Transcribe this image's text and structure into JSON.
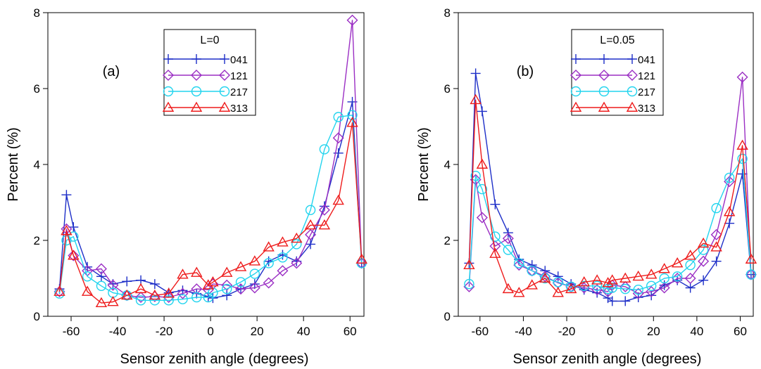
{
  "chart_data": [
    {
      "type": "line",
      "panel_label": "(a)",
      "xlabel": "Sensor zenith angle (degrees)",
      "ylabel": "Percent (%)",
      "xlim": [
        -70,
        66
      ],
      "ylim": [
        0,
        8
      ],
      "xticks": [
        -60,
        -40,
        -20,
        0,
        20,
        40,
        60
      ],
      "yticks": [
        0,
        2,
        4,
        6,
        8
      ],
      "grid": false,
      "legend": {
        "title": "L=0",
        "position": "top-center"
      },
      "series": [
        {
          "name": "041",
          "color": "#1e2fc8",
          "marker": "plus",
          "x": [
            -65,
            -62,
            -59,
            -53,
            -47,
            -42,
            -36,
            -30,
            -24,
            -18,
            -12,
            -6,
            -1,
            1,
            7,
            13,
            19,
            25,
            31,
            37,
            43,
            49,
            55,
            61,
            65
          ],
          "y": [
            0.72,
            3.2,
            2.35,
            1.3,
            1.05,
            0.85,
            0.92,
            0.95,
            0.85,
            0.62,
            0.68,
            0.6,
            0.52,
            0.48,
            0.55,
            0.72,
            0.85,
            1.45,
            1.62,
            1.45,
            1.9,
            2.9,
            4.3,
            5.65,
            1.4
          ]
        },
        {
          "name": "121",
          "color": "#9b2fc4",
          "marker": "diamond",
          "x": [
            -65,
            -62,
            -59,
            -53,
            -47,
            -42,
            -36,
            -30,
            -24,
            -18,
            -12,
            -6,
            -1,
            1,
            7,
            13,
            19,
            25,
            31,
            37,
            43,
            49,
            55,
            61,
            65
          ],
          "y": [
            0.65,
            2.3,
            1.6,
            1.2,
            1.25,
            0.82,
            0.55,
            0.5,
            0.52,
            0.5,
            0.6,
            0.72,
            0.7,
            0.85,
            0.82,
            0.72,
            0.75,
            0.88,
            1.2,
            1.4,
            2.15,
            2.8,
            4.7,
            7.8,
            1.4
          ]
        },
        {
          "name": "217",
          "color": "#22d4ee",
          "marker": "circle",
          "x": [
            -65,
            -62,
            -59,
            -53,
            -47,
            -42,
            -36,
            -30,
            -24,
            -18,
            -12,
            -6,
            -1,
            1,
            7,
            13,
            19,
            25,
            31,
            37,
            43,
            49,
            55,
            61,
            65
          ],
          "y": [
            0.6,
            2.0,
            2.1,
            1.05,
            0.8,
            0.62,
            0.55,
            0.42,
            0.42,
            0.42,
            0.45,
            0.5,
            0.5,
            0.62,
            0.72,
            0.9,
            1.12,
            1.4,
            1.55,
            1.9,
            2.8,
            4.4,
            5.25,
            5.3,
            1.4
          ]
        },
        {
          "name": "313",
          "color": "#ee1c1c",
          "marker": "triangle",
          "x": [
            -65,
            -62,
            -59,
            -53,
            -47,
            -42,
            -36,
            -30,
            -24,
            -18,
            -12,
            -6,
            -1,
            1,
            7,
            13,
            19,
            25,
            31,
            37,
            43,
            49,
            55,
            61,
            65
          ],
          "y": [
            0.65,
            2.25,
            1.6,
            0.65,
            0.35,
            0.38,
            0.55,
            0.72,
            0.55,
            0.6,
            1.1,
            1.15,
            0.82,
            0.9,
            1.15,
            1.3,
            1.45,
            1.82,
            1.95,
            2.05,
            2.4,
            2.4,
            3.05,
            5.1,
            1.5
          ]
        }
      ]
    },
    {
      "type": "line",
      "panel_label": "(b)",
      "xlabel": "Sensor zenith angle (degrees)",
      "ylabel": "Percent (%)",
      "xlim": [
        -70,
        66
      ],
      "ylim": [
        0,
        8
      ],
      "xticks": [
        -60,
        -40,
        -20,
        0,
        20,
        40,
        60
      ],
      "yticks": [
        0,
        2,
        4,
        6,
        8
      ],
      "grid": false,
      "legend": {
        "title": "L=0.05",
        "position": "top-center"
      },
      "series": [
        {
          "name": "041",
          "color": "#1e2fc8",
          "marker": "plus",
          "x": [
            -65,
            -62,
            -59,
            -53,
            -47,
            -42,
            -36,
            -30,
            -24,
            -18,
            -12,
            -6,
            -1,
            1,
            7,
            13,
            19,
            25,
            31,
            37,
            43,
            49,
            55,
            61,
            65
          ],
          "y": [
            1.4,
            6.4,
            5.4,
            2.95,
            2.2,
            1.5,
            1.35,
            1.2,
            1.05,
            0.85,
            0.7,
            0.62,
            0.48,
            0.4,
            0.4,
            0.5,
            0.55,
            0.82,
            0.95,
            0.75,
            0.95,
            1.45,
            2.45,
            3.75,
            1.1
          ]
        },
        {
          "name": "121",
          "color": "#9b2fc4",
          "marker": "diamond",
          "x": [
            -65,
            -62,
            -59,
            -53,
            -47,
            -42,
            -36,
            -30,
            -24,
            -18,
            -12,
            -6,
            -1,
            1,
            7,
            13,
            19,
            25,
            31,
            37,
            43,
            49,
            55,
            61,
            65
          ],
          "y": [
            0.78,
            3.6,
            2.6,
            1.85,
            2.05,
            1.35,
            1.2,
            1.05,
            0.88,
            0.78,
            0.75,
            0.7,
            0.65,
            0.82,
            0.78,
            0.6,
            0.65,
            0.75,
            1.0,
            1.0,
            1.45,
            2.15,
            3.55,
            6.3,
            1.1
          ]
        },
        {
          "name": "217",
          "color": "#22d4ee",
          "marker": "circle",
          "x": [
            -65,
            -62,
            -59,
            -53,
            -47,
            -42,
            -36,
            -30,
            -24,
            -18,
            -12,
            -6,
            -1,
            1,
            7,
            13,
            19,
            25,
            31,
            37,
            43,
            49,
            55,
            61,
            65
          ],
          "y": [
            0.85,
            3.7,
            3.35,
            2.1,
            1.75,
            1.4,
            1.2,
            1.0,
            0.9,
            0.78,
            0.8,
            0.8,
            0.72,
            0.75,
            0.72,
            0.7,
            0.8,
            1.0,
            1.05,
            1.35,
            1.75,
            2.85,
            3.65,
            4.15,
            1.1
          ]
        },
        {
          "name": "313",
          "color": "#ee1c1c",
          "marker": "triangle",
          "x": [
            -65,
            -62,
            -59,
            -53,
            -47,
            -42,
            -36,
            -30,
            -24,
            -18,
            -12,
            -6,
            -1,
            1,
            7,
            13,
            19,
            25,
            31,
            37,
            43,
            49,
            55,
            61,
            65
          ],
          "y": [
            1.35,
            5.7,
            4.0,
            1.65,
            0.72,
            0.62,
            0.82,
            1.0,
            0.62,
            0.72,
            0.9,
            0.95,
            0.88,
            0.95,
            1.0,
            1.05,
            1.1,
            1.25,
            1.4,
            1.6,
            1.92,
            1.82,
            2.75,
            4.5,
            1.5
          ]
        }
      ]
    }
  ]
}
